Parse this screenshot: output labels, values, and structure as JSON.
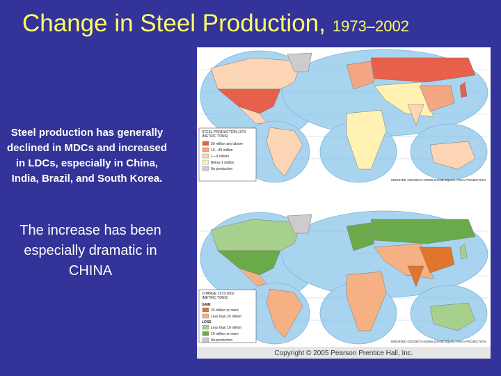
{
  "title": {
    "main": "Change in Steel Production,",
    "years": "1973–2002"
  },
  "text": {
    "summary": "Steel production has generally declined in MDCs and increased in LDCs, especially in China, India, Brazil, and South Korea.",
    "emphasis": "The increase has been especially dramatic in CHINA"
  },
  "maps": [
    {
      "legend_title": [
        "STEEL PRODUCTION,1973",
        "(METRIC TONS)"
      ],
      "legend": [
        {
          "items": [
            {
              "label": "50 million and above",
              "color": "#e8604c"
            },
            {
              "label": "10—49 million",
              "color": "#f4a582"
            },
            {
              "label": "1—9 million",
              "color": "#fcd5b4"
            },
            {
              "label": "Below 1 million",
              "color": "#fff2b2"
            },
            {
              "label": "No production",
              "color": "#cccccc"
            }
          ]
        }
      ],
      "projection": "MODIFIED GOODE'S HOMOLOSINE EQUAL-AREA PROJECTION"
    },
    {
      "legend_title": [
        "CHANGE 1973-2002",
        "(METRIC TONS)"
      ],
      "legend": [
        {
          "heading": "GAIN",
          "items": [
            {
              "label": "20 million or more",
              "color": "#e0752d"
            },
            {
              "label": "Less than 20 million",
              "color": "#f5b183"
            }
          ]
        },
        {
          "heading": "LOSS",
          "items": [
            {
              "label": "Less than 10 million",
              "color": "#a8d08d"
            },
            {
              "label": "10 million or more",
              "color": "#6aaa4b"
            }
          ]
        },
        {
          "items": [
            {
              "label": "No production",
              "color": "#cccccc"
            }
          ]
        }
      ],
      "projection": "MODIFIED GOODE'S HOMOLOSINE EQUAL-AREA PROJECTION"
    }
  ],
  "copyright": "Copyright © 2005 Pearson Prentice Hall, Inc."
}
